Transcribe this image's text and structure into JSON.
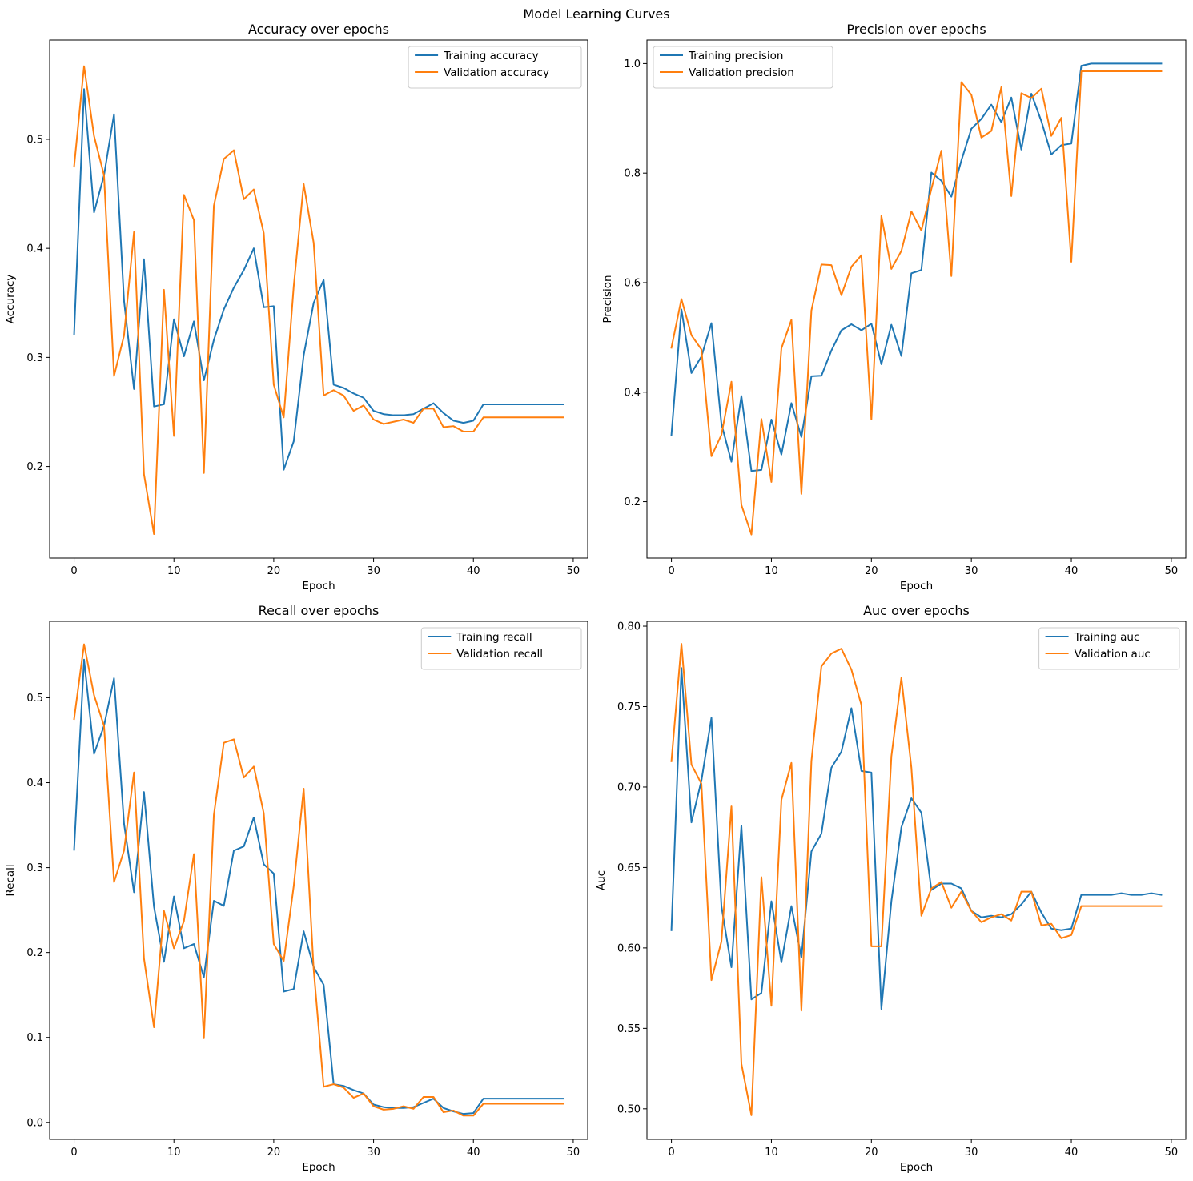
{
  "figure": {
    "title": "Model Learning Curves"
  },
  "chart_data": [
    {
      "type": "line",
      "title": "Accuracy over epochs",
      "xlabel": "Epoch",
      "ylabel": "Accuracy",
      "xlim": [
        -2.45,
        51.45
      ],
      "ylim": [
        0.116,
        0.591
      ],
      "xticks": [
        "0",
        "10",
        "20",
        "30",
        "40",
        "50"
      ],
      "yticks": [
        "0.2",
        "0.3",
        "0.4",
        "0.5"
      ],
      "ytick_values": [
        0.2,
        0.3,
        0.4,
        0.5
      ],
      "legend_position": "upper right",
      "grid": false,
      "series": [
        {
          "name": "Training accuracy",
          "color": "#1f77b4",
          "values": [
            0.321,
            0.546,
            0.433,
            0.467,
            0.523,
            0.352,
            0.271,
            0.39,
            0.255,
            0.257,
            0.335,
            0.301,
            0.333,
            0.279,
            0.316,
            0.344,
            0.364,
            0.38,
            0.4,
            0.346,
            0.347,
            0.197,
            0.223,
            0.302,
            0.35,
            0.371,
            0.275,
            0.272,
            0.267,
            0.263,
            0.251,
            0.248,
            0.247,
            0.247,
            0.248,
            0.253,
            0.258,
            0.249,
            0.242,
            0.24,
            0.242,
            0.257,
            0.257,
            0.257,
            0.257,
            0.257,
            0.257,
            0.257,
            0.257,
            0.257
          ]
        },
        {
          "name": "Validation accuracy",
          "color": "#ff7f0e",
          "values": [
            0.475,
            0.567,
            0.503,
            0.467,
            0.283,
            0.32,
            0.415,
            0.193,
            0.138,
            0.362,
            0.228,
            0.449,
            0.426,
            0.194,
            0.439,
            0.482,
            0.49,
            0.445,
            0.454,
            0.414,
            0.275,
            0.245,
            0.365,
            0.459,
            0.405,
            0.265,
            0.27,
            0.265,
            0.251,
            0.256,
            0.243,
            0.239,
            0.241,
            0.243,
            0.24,
            0.253,
            0.253,
            0.236,
            0.237,
            0.232,
            0.232,
            0.245,
            0.245,
            0.245,
            0.245,
            0.245,
            0.245,
            0.245,
            0.245,
            0.245
          ]
        }
      ]
    },
    {
      "type": "line",
      "title": "Precision over epochs",
      "xlabel": "Epoch",
      "ylabel": "Precision",
      "xlim": [
        -2.45,
        51.45
      ],
      "ylim": [
        0.097,
        1.043
      ],
      "xticks": [
        "0",
        "10",
        "20",
        "30",
        "40",
        "50"
      ],
      "yticks": [
        "0.2",
        "0.4",
        "0.6",
        "0.8",
        "1.0"
      ],
      "ytick_values": [
        0.2,
        0.4,
        0.6,
        0.8,
        1.0
      ],
      "legend_position": "upper left",
      "grid": false,
      "series": [
        {
          "name": "Training precision",
          "color": "#1f77b4",
          "values": [
            0.322,
            0.551,
            0.435,
            0.465,
            0.526,
            0.342,
            0.273,
            0.393,
            0.256,
            0.258,
            0.35,
            0.286,
            0.38,
            0.318,
            0.429,
            0.43,
            0.476,
            0.513,
            0.524,
            0.513,
            0.525,
            0.451,
            0.523,
            0.466,
            0.617,
            0.623,
            0.801,
            0.786,
            0.757,
            0.823,
            0.881,
            0.899,
            0.925,
            0.893,
            0.938,
            0.843,
            0.945,
            0.895,
            0.834,
            0.851,
            0.854,
            0.996,
            1.0,
            1.0,
            1.0,
            1.0,
            1.0,
            1.0,
            1.0,
            1.0
          ]
        },
        {
          "name": "Validation precision",
          "color": "#ff7f0e",
          "values": [
            0.481,
            0.57,
            0.504,
            0.478,
            0.283,
            0.322,
            0.419,
            0.194,
            0.14,
            0.351,
            0.236,
            0.48,
            0.532,
            0.214,
            0.549,
            0.633,
            0.632,
            0.577,
            0.629,
            0.65,
            0.35,
            0.722,
            0.625,
            0.658,
            0.73,
            0.695,
            0.771,
            0.841,
            0.612,
            0.966,
            0.943,
            0.865,
            0.877,
            0.957,
            0.758,
            0.946,
            0.937,
            0.954,
            0.868,
            0.901,
            0.638,
            0.986,
            0.986,
            0.986,
            0.986,
            0.986,
            0.986,
            0.986,
            0.986,
            0.986
          ]
        }
      ]
    },
    {
      "type": "line",
      "title": "Recall over epochs",
      "xlabel": "Epoch",
      "ylabel": "Recall",
      "xlim": [
        -2.45,
        51.45
      ],
      "ylim": [
        -0.02,
        0.59
      ],
      "xticks": [
        "0",
        "10",
        "20",
        "30",
        "40",
        "50"
      ],
      "yticks": [
        "0.0",
        "0.1",
        "0.2",
        "0.3",
        "0.4",
        "0.5"
      ],
      "ytick_values": [
        0.0,
        0.1,
        0.2,
        0.3,
        0.4,
        0.5
      ],
      "legend_position": "upper right",
      "grid": false,
      "series": [
        {
          "name": "Training recall",
          "color": "#1f77b4",
          "values": [
            0.321,
            0.545,
            0.434,
            0.467,
            0.523,
            0.352,
            0.271,
            0.389,
            0.254,
            0.189,
            0.266,
            0.205,
            0.21,
            0.171,
            0.261,
            0.255,
            0.32,
            0.325,
            0.359,
            0.304,
            0.293,
            0.154,
            0.157,
            0.225,
            0.183,
            0.162,
            0.045,
            0.043,
            0.038,
            0.034,
            0.021,
            0.018,
            0.017,
            0.017,
            0.018,
            0.023,
            0.028,
            0.017,
            0.013,
            0.01,
            0.011,
            0.028,
            0.028,
            0.028,
            0.028,
            0.028,
            0.028,
            0.028,
            0.028,
            0.028
          ]
        },
        {
          "name": "Validation recall",
          "color": "#ff7f0e",
          "values": [
            0.475,
            0.563,
            0.503,
            0.467,
            0.283,
            0.32,
            0.412,
            0.193,
            0.112,
            0.249,
            0.205,
            0.237,
            0.316,
            0.099,
            0.362,
            0.447,
            0.451,
            0.406,
            0.419,
            0.364,
            0.21,
            0.19,
            0.278,
            0.393,
            0.18,
            0.042,
            0.045,
            0.041,
            0.029,
            0.034,
            0.019,
            0.015,
            0.016,
            0.019,
            0.016,
            0.03,
            0.03,
            0.012,
            0.014,
            0.008,
            0.008,
            0.022,
            0.022,
            0.022,
            0.022,
            0.022,
            0.022,
            0.022,
            0.022,
            0.022
          ]
        }
      ]
    },
    {
      "type": "line",
      "title": "Auc over epochs",
      "xlabel": "Epoch",
      "ylabel": "Auc",
      "xlim": [
        -2.45,
        51.45
      ],
      "ylim": [
        0.481,
        0.803
      ],
      "xticks": [
        "0",
        "10",
        "20",
        "30",
        "40",
        "50"
      ],
      "yticks": [
        "0.50",
        "0.55",
        "0.60",
        "0.65",
        "0.70",
        "0.75",
        "0.80"
      ],
      "ytick_values": [
        0.5,
        0.55,
        0.6,
        0.65,
        0.7,
        0.75,
        0.8
      ],
      "legend_position": "upper right",
      "grid": false,
      "series": [
        {
          "name": "Training auc",
          "color": "#1f77b4",
          "values": [
            0.611,
            0.774,
            0.678,
            0.704,
            0.743,
            0.626,
            0.588,
            0.676,
            0.568,
            0.572,
            0.629,
            0.591,
            0.626,
            0.594,
            0.66,
            0.671,
            0.712,
            0.722,
            0.749,
            0.71,
            0.709,
            0.562,
            0.629,
            0.675,
            0.693,
            0.684,
            0.636,
            0.64,
            0.64,
            0.637,
            0.623,
            0.619,
            0.62,
            0.619,
            0.621,
            0.627,
            0.635,
            0.622,
            0.612,
            0.611,
            0.612,
            0.633,
            0.633,
            0.633,
            0.633,
            0.634,
            0.633,
            0.633,
            0.634,
            0.633
          ]
        },
        {
          "name": "Validation auc",
          "color": "#ff7f0e",
          "values": [
            0.716,
            0.789,
            0.714,
            0.702,
            0.58,
            0.604,
            0.688,
            0.528,
            0.496,
            0.644,
            0.564,
            0.692,
            0.715,
            0.561,
            0.716,
            0.775,
            0.783,
            0.786,
            0.773,
            0.751,
            0.601,
            0.601,
            0.719,
            0.768,
            0.712,
            0.62,
            0.637,
            0.641,
            0.625,
            0.635,
            0.623,
            0.616,
            0.619,
            0.621,
            0.617,
            0.635,
            0.635,
            0.614,
            0.615,
            0.606,
            0.608,
            0.626,
            0.626,
            0.626,
            0.626,
            0.626,
            0.626,
            0.626,
            0.626,
            0.626
          ]
        }
      ]
    }
  ]
}
